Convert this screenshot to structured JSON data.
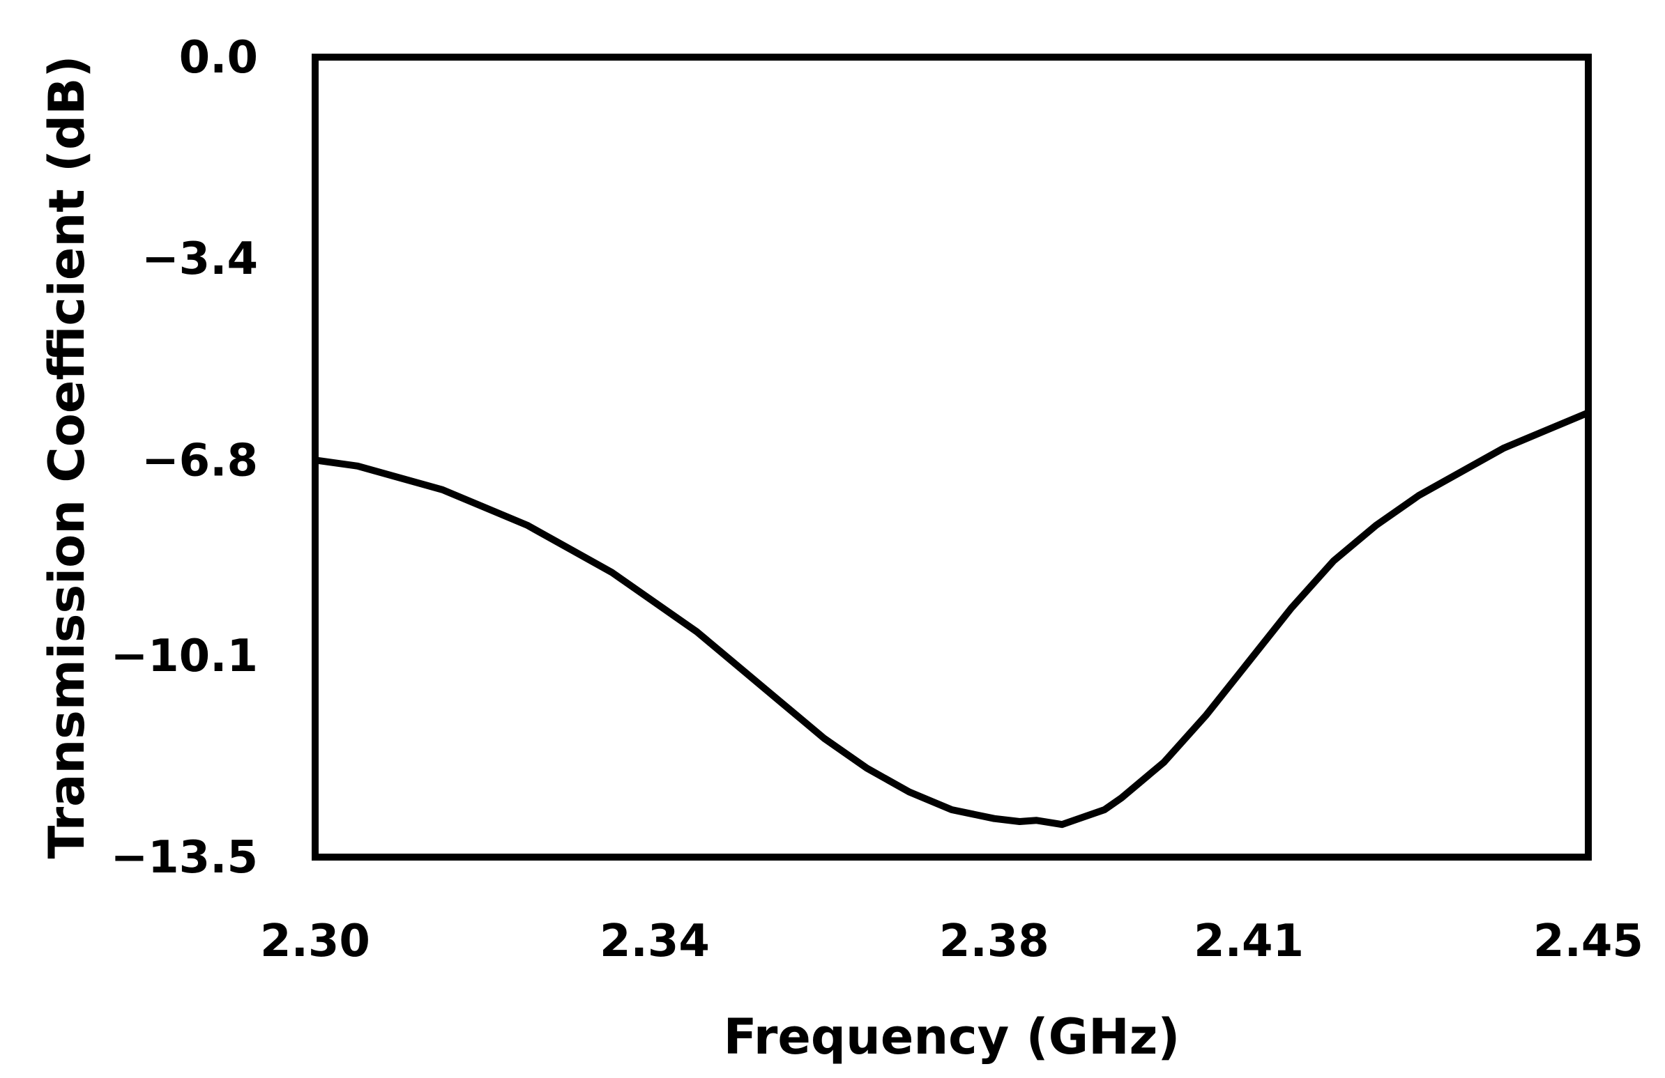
{
  "chart_data": {
    "type": "line",
    "title": "",
    "xlabel": "Frequency (GHz)",
    "ylabel": "Transmission Coefficient (dB)",
    "xlim": [
      2.3,
      2.45
    ],
    "ylim": [
      -13.5,
      0.0
    ],
    "x_ticks": [
      {
        "value": 2.3,
        "label": "2.30"
      },
      {
        "value": 2.34,
        "label": "2.34"
      },
      {
        "value": 2.38,
        "label": "2.38"
      },
      {
        "value": 2.41,
        "label": "2.41"
      },
      {
        "value": 2.45,
        "label": "2.45"
      }
    ],
    "y_ticks": [
      {
        "value": 0.0,
        "label": "0.0"
      },
      {
        "value": -3.4,
        "label": "−3.4"
      },
      {
        "value": -6.8,
        "label": "−6.8"
      },
      {
        "value": -10.1,
        "label": "−10.1"
      },
      {
        "value": -13.5,
        "label": "−13.5"
      }
    ],
    "grid": false,
    "line_color": "#000000",
    "series": [
      {
        "x": [
          2.3,
          2.305,
          2.31,
          2.315,
          2.32,
          2.325,
          2.33,
          2.335,
          2.34,
          2.345,
          2.35,
          2.355,
          2.36,
          2.365,
          2.37,
          2.375,
          2.38,
          2.383,
          2.385,
          2.388,
          2.39,
          2.393,
          2.395,
          2.4,
          2.405,
          2.41,
          2.415,
          2.42,
          2.425,
          2.43,
          2.435,
          2.44,
          2.445,
          2.45
        ],
        "y": [
          -6.8,
          -6.9,
          -7.1,
          -7.3,
          -7.6,
          -7.9,
          -8.3,
          -8.7,
          -9.2,
          -9.7,
          -10.3,
          -10.9,
          -11.5,
          -12.0,
          -12.4,
          -12.7,
          -12.85,
          -12.9,
          -12.88,
          -12.95,
          -12.85,
          -12.7,
          -12.5,
          -11.9,
          -11.1,
          -10.2,
          -9.3,
          -8.5,
          -7.9,
          -7.4,
          -7.0,
          -6.6,
          -6.3,
          -6.0
        ]
      }
    ]
  }
}
